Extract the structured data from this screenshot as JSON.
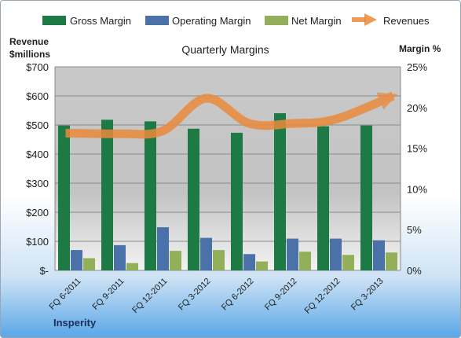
{
  "chart_data": {
    "type": "bar",
    "title": "Quarterly Margins",
    "left_axis_label_line1": "Revenue",
    "left_axis_label_line2": "$millions",
    "right_axis_label": "Margin %",
    "source_label": "Insperity",
    "categories": [
      "FQ 6-2011",
      "FQ 9-2011",
      "FQ 12-2011",
      "FQ 3-2012",
      "FQ 6-2012",
      "FQ 9-2012",
      "FQ 12-2012",
      "FQ 3-2013"
    ],
    "left_ticks": [
      "$-",
      "$100",
      "$200",
      "$300",
      "$400",
      "$500",
      "$600",
      "$700"
    ],
    "right_ticks": [
      "0%",
      "5%",
      "10%",
      "15%",
      "20%",
      "25%"
    ],
    "ylim_left": [
      0,
      700
    ],
    "ylim_right": [
      0,
      25
    ],
    "bar_series": [
      {
        "name": "Gross Margin",
        "color": "#1e7a45",
        "values": [
          17.8,
          18.5,
          18.3,
          17.4,
          16.9,
          19.3,
          17.7,
          17.8
        ]
      },
      {
        "name": "Operating Margin",
        "color": "#4a72a8",
        "values": [
          2.5,
          3.1,
          5.3,
          4.0,
          2.0,
          3.9,
          3.9,
          3.7
        ]
      },
      {
        "name": "Net Margin",
        "color": "#92b05a",
        "values": [
          1.5,
          0.9,
          2.4,
          2.5,
          1.1,
          2.3,
          1.9,
          2.2
        ]
      }
    ],
    "line_series": {
      "name": "Revenues",
      "color": "#ea8a3c",
      "values": [
        472,
        470,
        480,
        592,
        505,
        505,
        520,
        600
      ]
    },
    "grid": true,
    "legend_position": "top"
  }
}
